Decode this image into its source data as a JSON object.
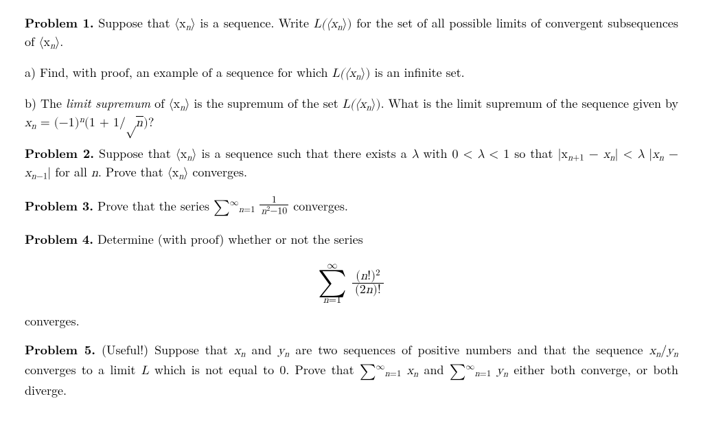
{
  "p1": {
    "label": "Problem 1.",
    "intro_a": "Suppose that ",
    "seq1": "⟨x",
    "seq1_sub": "n",
    "seq1_close": "⟩",
    "intro_b": " is a sequence.  Write ",
    "L1": "L(⟨x",
    "L1_sub": "n",
    "L1_close": "⟩)",
    "intro_c": " for the set of all possible limits of convergent subsequences of ",
    "seq2": "⟨x",
    "seq2_sub": "n",
    "seq2_close": "⟩.",
    "a_label": "a) ",
    "a_text1": "Find, with proof, an example of a sequence for which ",
    "a_L": "L(⟨x",
    "a_L_sub": "n",
    "a_L_close": "⟩)",
    "a_text2": " is an infinite set.",
    "b_label": "b) ",
    "b_text1": "The ",
    "b_term": "limit supremum",
    "b_text2": " of ",
    "b_seq": "⟨x",
    "b_seq_sub": "n",
    "b_seq_close": "⟩",
    "b_text3": " is the supremum of the set ",
    "b_L": "L(⟨x",
    "b_L_sub": "n",
    "b_L_close": "⟩).",
    "b_text4": "  What is the limit supremum of the sequence given by ",
    "b_eq_lhs": "x",
    "b_eq_lhs_sub": "n",
    "b_eq_eq": " = (−1)",
    "b_eq_exp": "n",
    "b_eq_open": "(1 + 1/",
    "b_eq_root": "√",
    "b_eq_rad": "n",
    "b_eq_close": ")?"
  },
  "p2": {
    "label": "Problem 2.",
    "t1": " Suppose that ",
    "seq": "⟨x",
    "seq_sub": "n",
    "seq_close": "⟩",
    "t2": " is a sequence such that there exists a ",
    "lam": "λ",
    "t3": " with ",
    "ineq1": "0 < λ < 1",
    "t4": " so that ",
    "lhs_a": "|x",
    "lhs_a_sub": "n+1",
    "lhs_b": " − x",
    "lhs_b_sub": "n",
    "lhs_c": "|",
    "lt": " < ",
    "rhs_a": "λ |x",
    "rhs_a_sub": "n",
    "rhs_b": " − x",
    "rhs_b_sub": "n−1",
    "rhs_c": "|",
    "t5": " for all ",
    "nvar": "n",
    "t6": ".  Prove that ",
    "seq2": "⟨x",
    "seq2_sub": "n",
    "seq2_close": "⟩",
    "t7": " converges."
  },
  "p3": {
    "label": "Problem 3.",
    "t1": " Prove that the series ",
    "sum_sup": "∞",
    "sum_sub": "n=1",
    "frac_num": "1",
    "frac_den_a": "n",
    "frac_den_exp": "2",
    "frac_den_b": "−10",
    "t2": " converges."
  },
  "p4": {
    "label": "Problem 4.",
    "t1": " Determine (with proof) whether or not the series",
    "sum_top": "∞",
    "sum_bot_a": "n",
    "sum_bot_b": "=1",
    "num_a": "(n",
    "num_b": "!)",
    "num_exp": "2",
    "den_a": "(2n",
    "den_b": ")!",
    "t2": "converges."
  },
  "p5": {
    "label": "Problem 5.",
    "t1": " (Useful!)  Suppose that ",
    "xn": "x",
    "xn_sub": "n",
    "t2": " and ",
    "yn": "y",
    "yn_sub": "n",
    "t3": " are two sequences of positive numbers and that the sequence ",
    "ratio_a": "x",
    "ratio_a_sub": "n",
    "ratio_b": "/y",
    "ratio_b_sub": "n",
    "t4": " converges to a limit ",
    "Lvar": "L",
    "t5": " which is not equal to 0.  Prove that ",
    "sum1_sup": "∞",
    "sum1_sub": "n=1",
    "sum1_term": " x",
    "sum1_term_sub": "n",
    "t6": " and ",
    "sum2_sup": "∞",
    "sum2_sub": "n=1",
    "sum2_term": " y",
    "sum2_term_sub": "n",
    "t7": " either both converge, or both diverge."
  }
}
